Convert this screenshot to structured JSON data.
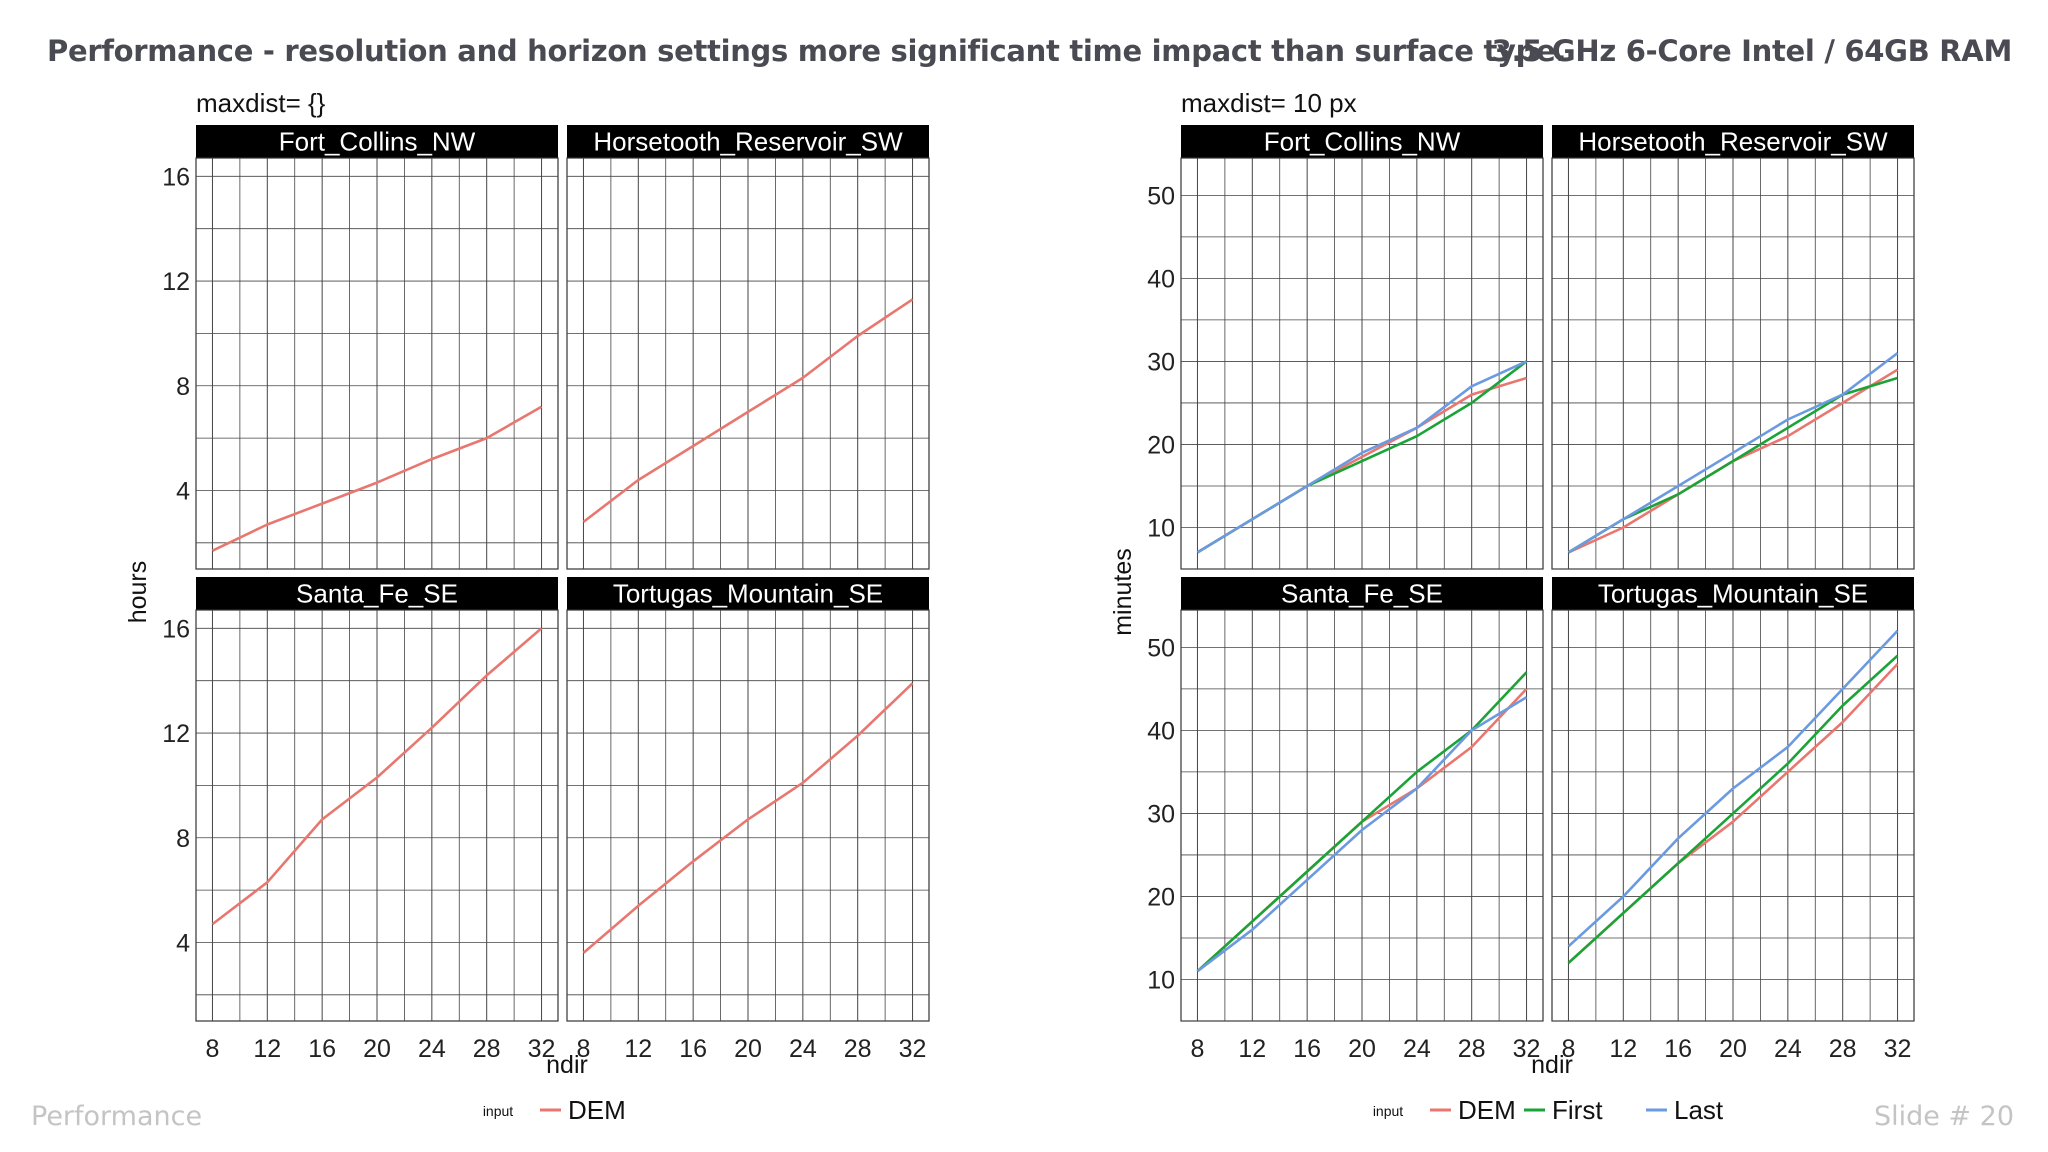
{
  "slide": {
    "title": "Performance - resolution and horizon settings more significant time impact than surface type.",
    "spec": "3.5 GHz 6-Core Intel / 64GB RAM",
    "footer_left": "Performance",
    "footer_slide_label": "Slide #",
    "footer_slide_number": "20"
  },
  "chart_data": [
    {
      "type": "line",
      "title": "maxdist= {}",
      "xlabel": "ndir",
      "ylabel": "hours",
      "x": [
        8,
        12,
        16,
        20,
        24,
        28,
        32
      ],
      "xticks": [
        8,
        12,
        16,
        20,
        24,
        28,
        32
      ],
      "xlim": [
        6.8,
        33.2
      ],
      "yticks": [
        4,
        8,
        12,
        16
      ],
      "ylim": [
        1.0,
        16.7
      ],
      "legend_title": "input",
      "legend": [
        {
          "name": "DEM",
          "color": "#e8776f"
        }
      ],
      "facets": [
        {
          "name": "Fort_Collins_NW",
          "series": [
            {
              "name": "DEM",
              "values": [
                1.7,
                2.7,
                3.5,
                4.3,
                5.2,
                6.0,
                7.2
              ]
            }
          ]
        },
        {
          "name": "Horsetooth_Reservoir_SW",
          "series": [
            {
              "name": "DEM",
              "values": [
                2.8,
                4.4,
                5.7,
                7.0,
                8.3,
                9.9,
                11.3
              ]
            }
          ]
        },
        {
          "name": "Santa_Fe_SE",
          "series": [
            {
              "name": "DEM",
              "values": [
                4.7,
                6.3,
                8.7,
                10.3,
                12.2,
                14.2,
                16.0
              ]
            }
          ]
        },
        {
          "name": "Tortugas_Mountain_SE",
          "series": [
            {
              "name": "DEM",
              "values": [
                3.6,
                5.4,
                7.1,
                8.7,
                10.1,
                11.9,
                13.9
              ]
            }
          ]
        }
      ]
    },
    {
      "type": "line",
      "title": "maxdist= 10 px",
      "xlabel": "ndir",
      "ylabel": "minutes",
      "x": [
        8,
        12,
        16,
        20,
        24,
        28,
        32
      ],
      "xticks": [
        8,
        12,
        16,
        20,
        24,
        28,
        32
      ],
      "xlim": [
        6.8,
        33.2
      ],
      "yticks": [
        10,
        20,
        30,
        40,
        50
      ],
      "ylim": [
        5.0,
        54.5
      ],
      "legend_title": "input",
      "legend": [
        {
          "name": "DEM",
          "color": "#e8776f"
        },
        {
          "name": "First",
          "color": "#1aa336"
        },
        {
          "name": "Last",
          "color": "#6b9ae0"
        }
      ],
      "facets": [
        {
          "name": "Fort_Collins_NW",
          "series": [
            {
              "name": "DEM",
              "values": [
                7,
                11,
                15,
                18.5,
                22,
                26,
                28
              ]
            },
            {
              "name": "First",
              "values": [
                7,
                11,
                15,
                18,
                21,
                25,
                30
              ]
            },
            {
              "name": "Last",
              "values": [
                7,
                11,
                15,
                19,
                22,
                27,
                30
              ]
            }
          ]
        },
        {
          "name": "Horsetooth_Reservoir_SW",
          "series": [
            {
              "name": "DEM",
              "values": [
                7,
                10,
                14,
                18,
                21,
                25,
                29
              ]
            },
            {
              "name": "First",
              "values": [
                7,
                11,
                14,
                18,
                22,
                26,
                28
              ]
            },
            {
              "name": "Last",
              "values": [
                7,
                11,
                15,
                19,
                23,
                26,
                31
              ]
            }
          ]
        },
        {
          "name": "Santa_Fe_SE",
          "series": [
            {
              "name": "DEM",
              "values": [
                11,
                17,
                23,
                29,
                33,
                38,
                45
              ]
            },
            {
              "name": "First",
              "values": [
                11,
                17,
                23,
                29,
                35,
                40,
                47
              ]
            },
            {
              "name": "Last",
              "values": [
                11,
                16,
                22,
                28,
                33,
                40,
                44
              ]
            }
          ]
        },
        {
          "name": "Tortugas_Mountain_SE",
          "series": [
            {
              "name": "DEM",
              "values": [
                12,
                18,
                24,
                29,
                35,
                41,
                48
              ]
            },
            {
              "name": "First",
              "values": [
                12,
                18,
                24,
                30,
                36,
                43,
                49
              ]
            },
            {
              "name": "Last",
              "values": [
                14,
                20,
                27,
                33,
                38,
                45,
                52
              ]
            }
          ]
        }
      ]
    }
  ]
}
